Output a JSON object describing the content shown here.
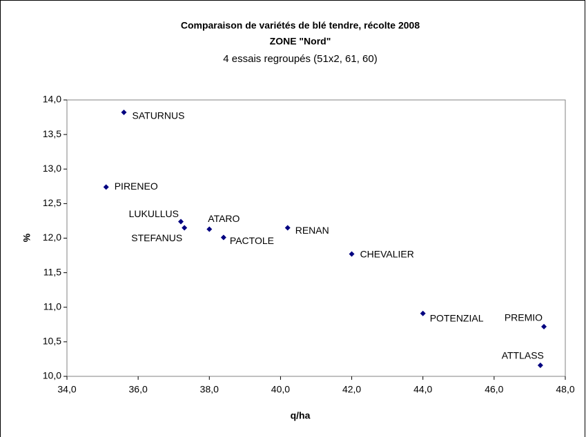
{
  "chart_data": {
    "type": "scatter",
    "title": "Comparaison de variétés de blé tendre, récolte 2008",
    "title_line2": "ZONE \"Nord\"",
    "subtitle": "4 essais regroupés (51x2, 61, 60)",
    "xlabel": "q/ha",
    "ylabel": "%",
    "color": "#000080",
    "labels": [
      "SATURNUS",
      "PIRENEO",
      "LUKULLUS",
      "STEFANUS",
      "ATARO",
      "PACTOLE",
      "RENAN",
      "CHEVALIER",
      "POTENZIAL",
      "PREMIO",
      "ATTLASS"
    ],
    "x": [
      35.6,
      35.1,
      37.2,
      37.3,
      38.0,
      38.4,
      40.2,
      42.0,
      44.0,
      47.4,
      47.3
    ],
    "y": [
      13.82,
      12.74,
      12.24,
      12.15,
      12.13,
      12.01,
      12.15,
      11.77,
      10.91,
      10.72,
      10.16
    ],
    "xlim": [
      34,
      48
    ],
    "xticks": [
      {
        "value": 34,
        "label": "34,0"
      },
      {
        "value": 36,
        "label": "36,0"
      },
      {
        "value": 38,
        "label": "38,0"
      },
      {
        "value": 40,
        "label": "40,0"
      },
      {
        "value": 42,
        "label": "42,0"
      },
      {
        "value": 44,
        "label": "44,0"
      },
      {
        "value": 46,
        "label": "46,0"
      },
      {
        "value": 48,
        "label": "48,0"
      }
    ],
    "ylim": [
      10,
      14
    ],
    "yticks": [
      {
        "value": 10,
        "label": "10,0"
      },
      {
        "value": 10.5,
        "label": "10,5"
      },
      {
        "value": 11,
        "label": "11,0"
      },
      {
        "value": 11.5,
        "label": "11,5"
      },
      {
        "value": 12,
        "label": "12,0"
      },
      {
        "value": 12.5,
        "label": "12,5"
      },
      {
        "value": 13,
        "label": "13,0"
      },
      {
        "value": 13.5,
        "label": "13,5"
      },
      {
        "value": 14,
        "label": "14,0"
      }
    ],
    "grid": false
  }
}
